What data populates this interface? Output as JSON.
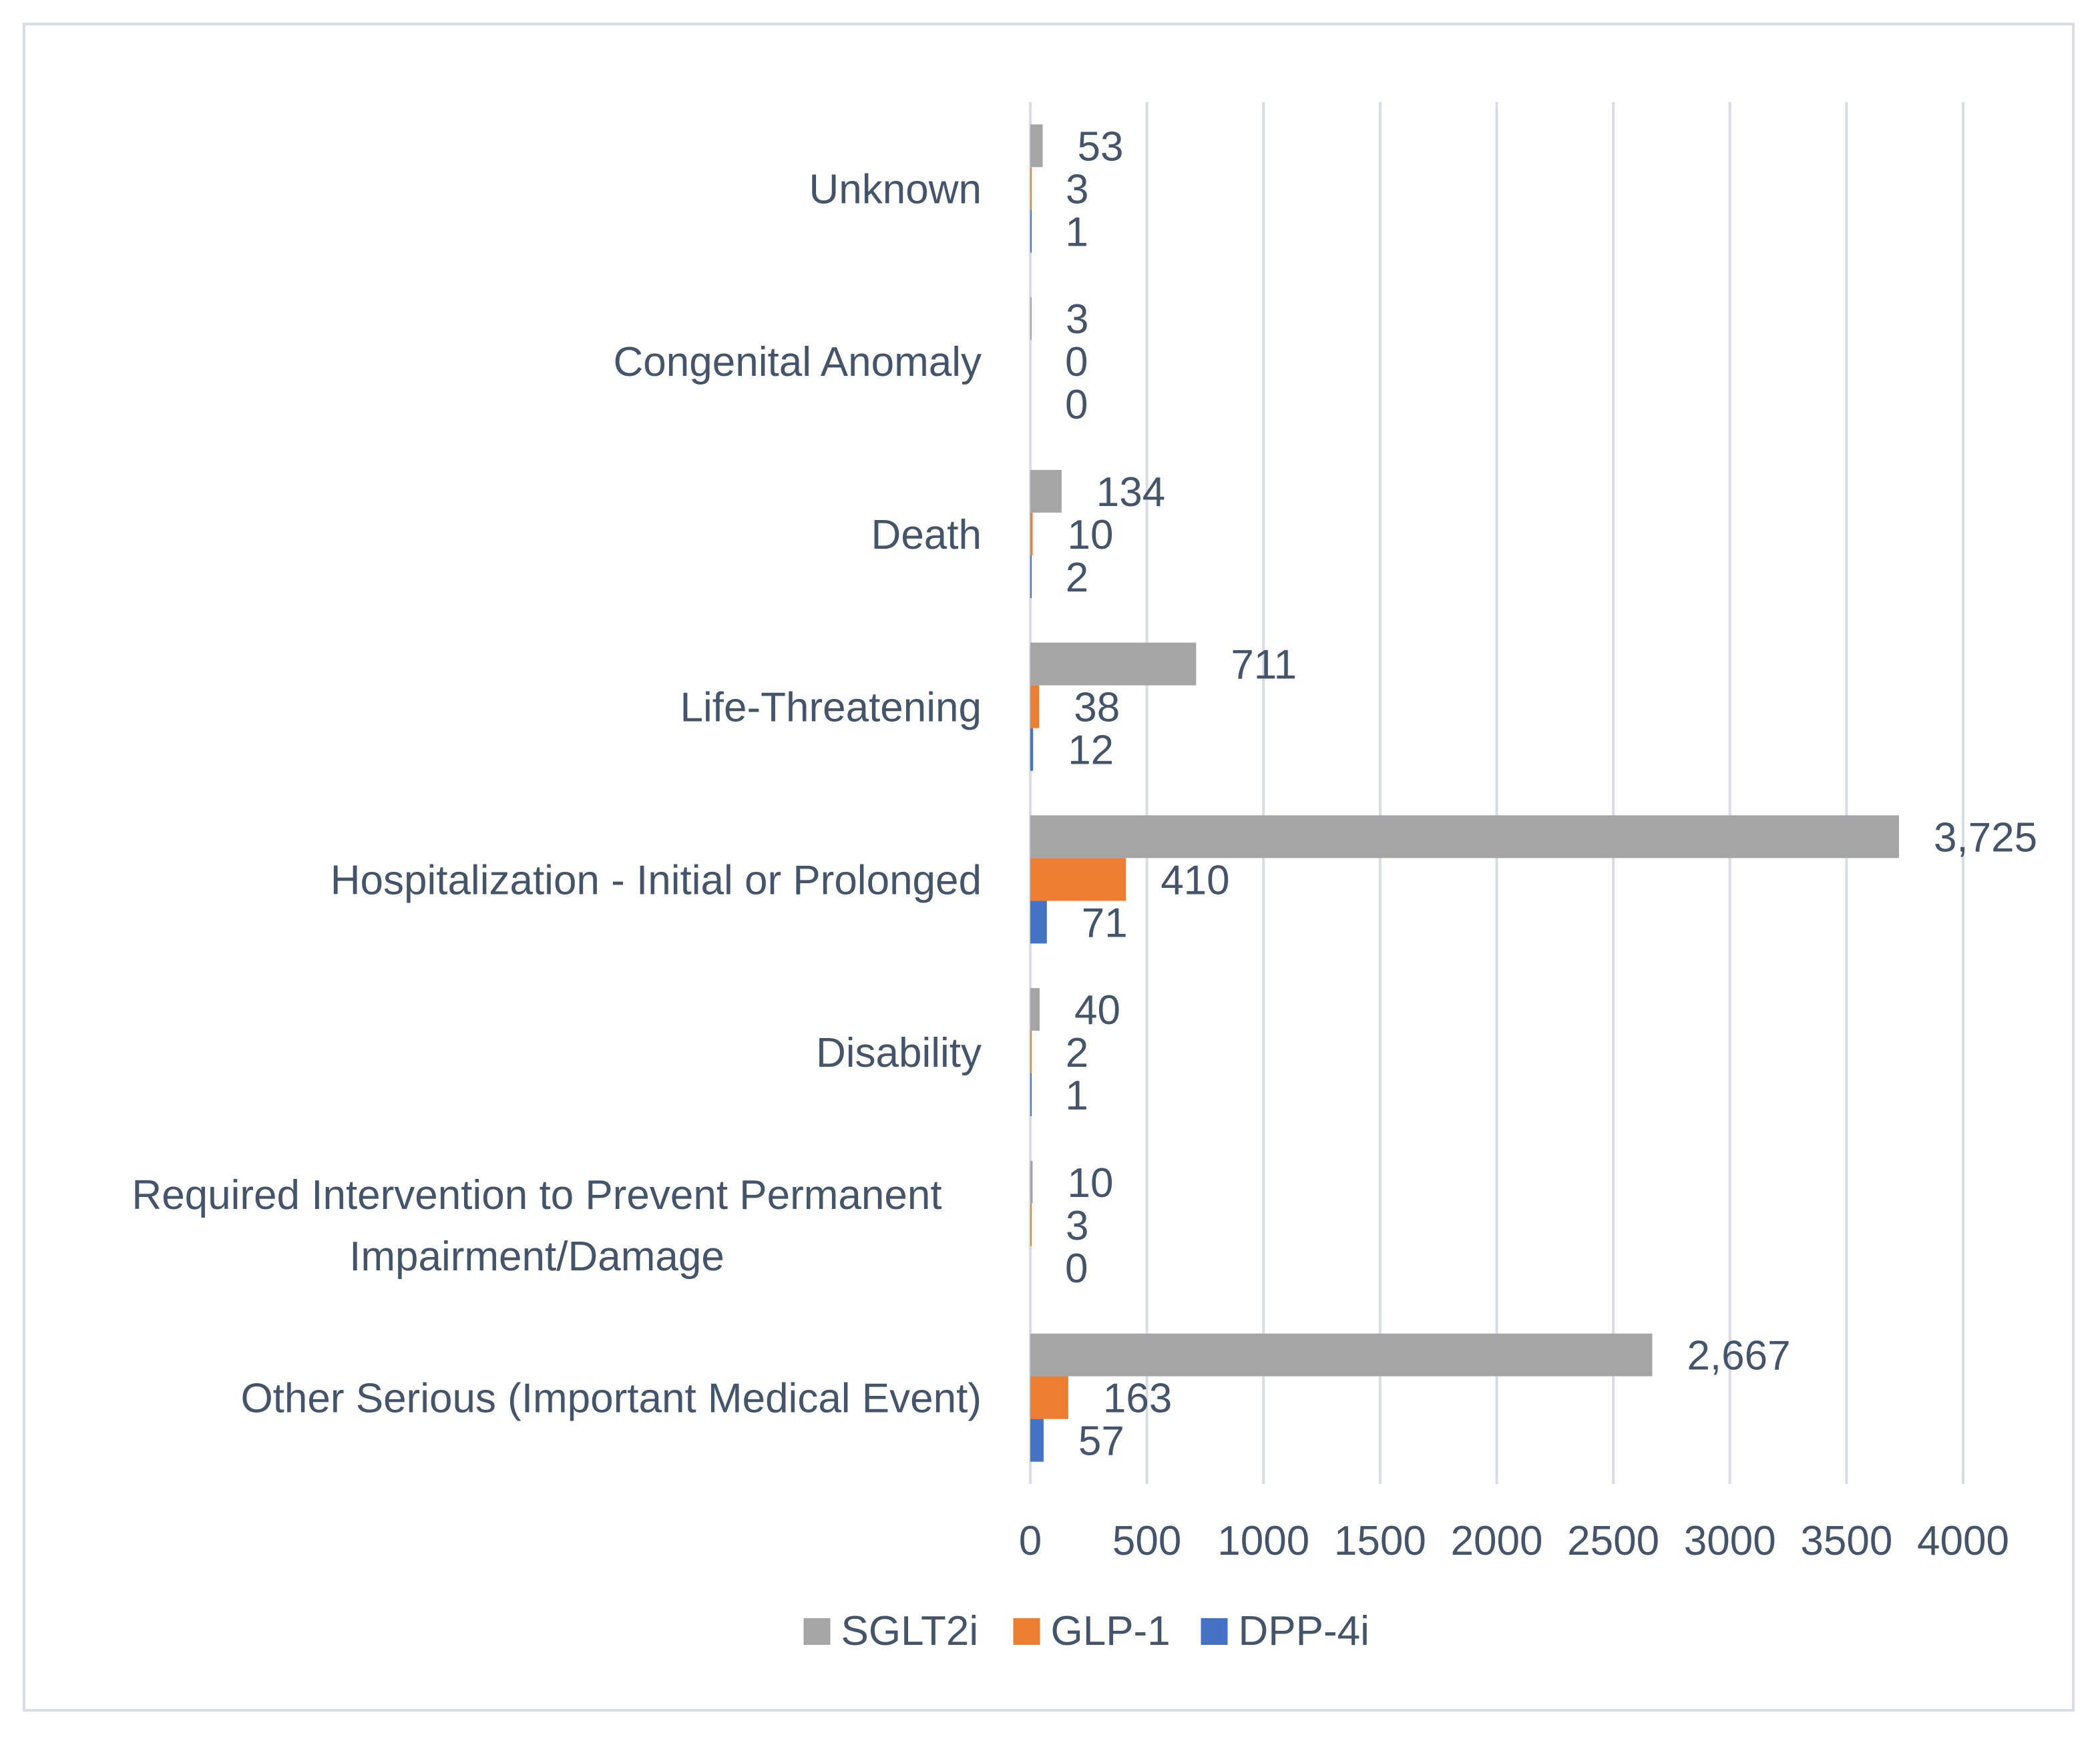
{
  "chart_data": {
    "type": "bar",
    "orientation": "horizontal",
    "title": "",
    "xlabel": "",
    "ylabel": "",
    "xlim": [
      0,
      4000
    ],
    "xticks": [
      0,
      500,
      1000,
      1500,
      2000,
      2500,
      3000,
      3500,
      4000
    ],
    "grid": true,
    "legend_position": "bottom",
    "categories": [
      [
        "Unknown"
      ],
      [
        "Congenital Anomaly"
      ],
      [
        "Death"
      ],
      [
        "Life-Threatening"
      ],
      [
        "Hospitalization - Initial or Prolonged"
      ],
      [
        "Disability"
      ],
      [
        "Required Intervention to Prevent Permanent",
        "Impairment/Damage"
      ],
      [
        "Other Serious (Important Medical Event)"
      ]
    ],
    "series": [
      {
        "name": "SGLT2i",
        "color": "#a5a5a5",
        "values": [
          53,
          3,
          134,
          711,
          3725,
          40,
          10,
          2667
        ],
        "labels": [
          "53",
          "3",
          "134",
          "711",
          "3,725",
          "40",
          "10",
          "2,667"
        ]
      },
      {
        "name": "GLP-1",
        "color": "#ed7d31",
        "values": [
          3,
          0,
          10,
          38,
          410,
          2,
          3,
          163
        ],
        "labels": [
          "3",
          "0",
          "10",
          "38",
          "410",
          "2",
          "3",
          "163"
        ]
      },
      {
        "name": "DPP-4i",
        "color": "#4472c4",
        "values": [
          1,
          0,
          2,
          12,
          71,
          1,
          0,
          57
        ],
        "labels": [
          "1",
          "0",
          "2",
          "12",
          "71",
          "1",
          "0",
          "57"
        ]
      }
    ]
  }
}
